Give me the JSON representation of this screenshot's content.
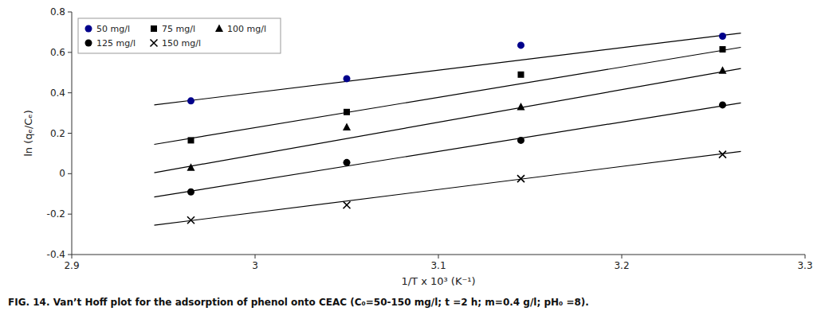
{
  "chart_data": {
    "type": "scatter",
    "xlabel": "1/T x 10³ (K⁻¹)",
    "ylabel": "ln (qₑ/Cₑ)",
    "caption": "FIG. 14. Van’t Hoff plot for the adsorption of phenol onto CEAC (C₀=50-150 mg/l;  t =2 h;  m=0.4 g/l;  pH₀ =8).",
    "xlim": [
      2.9,
      3.3
    ],
    "ylim": [
      -0.4,
      0.8
    ],
    "xticks": [
      2.9,
      3,
      3.1,
      3.2,
      3.3
    ],
    "yticks": [
      -0.4,
      -0.2,
      0,
      0.2,
      0.4,
      0.6,
      0.8
    ],
    "legend": "upper left",
    "series": [
      {
        "name": "50 mg/l",
        "marker": "circle",
        "color": "#00008B",
        "x": [
          2.965,
          3.05,
          3.145,
          3.255
        ],
        "values": [
          0.36,
          0.47,
          0.635,
          0.68
        ],
        "fit_x": [
          2.945,
          3.265
        ],
        "fit_y": [
          0.34,
          0.695
        ]
      },
      {
        "name": "75 mg/l",
        "marker": "square",
        "color": "#000000",
        "x": [
          2.965,
          3.05,
          3.145,
          3.255
        ],
        "values": [
          0.165,
          0.305,
          0.49,
          0.615
        ],
        "fit_x": [
          2.945,
          3.265
        ],
        "fit_y": [
          0.145,
          0.625
        ]
      },
      {
        "name": "100 mg/l",
        "marker": "triangle",
        "color": "#000000",
        "x": [
          2.965,
          3.05,
          3.145,
          3.255
        ],
        "values": [
          0.03,
          0.23,
          0.33,
          0.51
        ],
        "fit_x": [
          2.945,
          3.265
        ],
        "fit_y": [
          0.005,
          0.52
        ]
      },
      {
        "name": "125 mg/l",
        "marker": "circle",
        "color": "#000000",
        "x": [
          2.965,
          3.05,
          3.145,
          3.255
        ],
        "values": [
          -0.09,
          0.055,
          0.165,
          0.34
        ],
        "fit_x": [
          2.945,
          3.265
        ],
        "fit_y": [
          -0.115,
          0.35
        ]
      },
      {
        "name": "150 mg/l",
        "marker": "cross",
        "color": "#000000",
        "x": [
          2.965,
          3.05,
          3.145,
          3.255
        ],
        "values": [
          -0.23,
          -0.155,
          -0.025,
          0.095
        ],
        "fit_x": [
          2.945,
          3.265
        ],
        "fit_y": [
          -0.255,
          0.11
        ]
      }
    ]
  }
}
